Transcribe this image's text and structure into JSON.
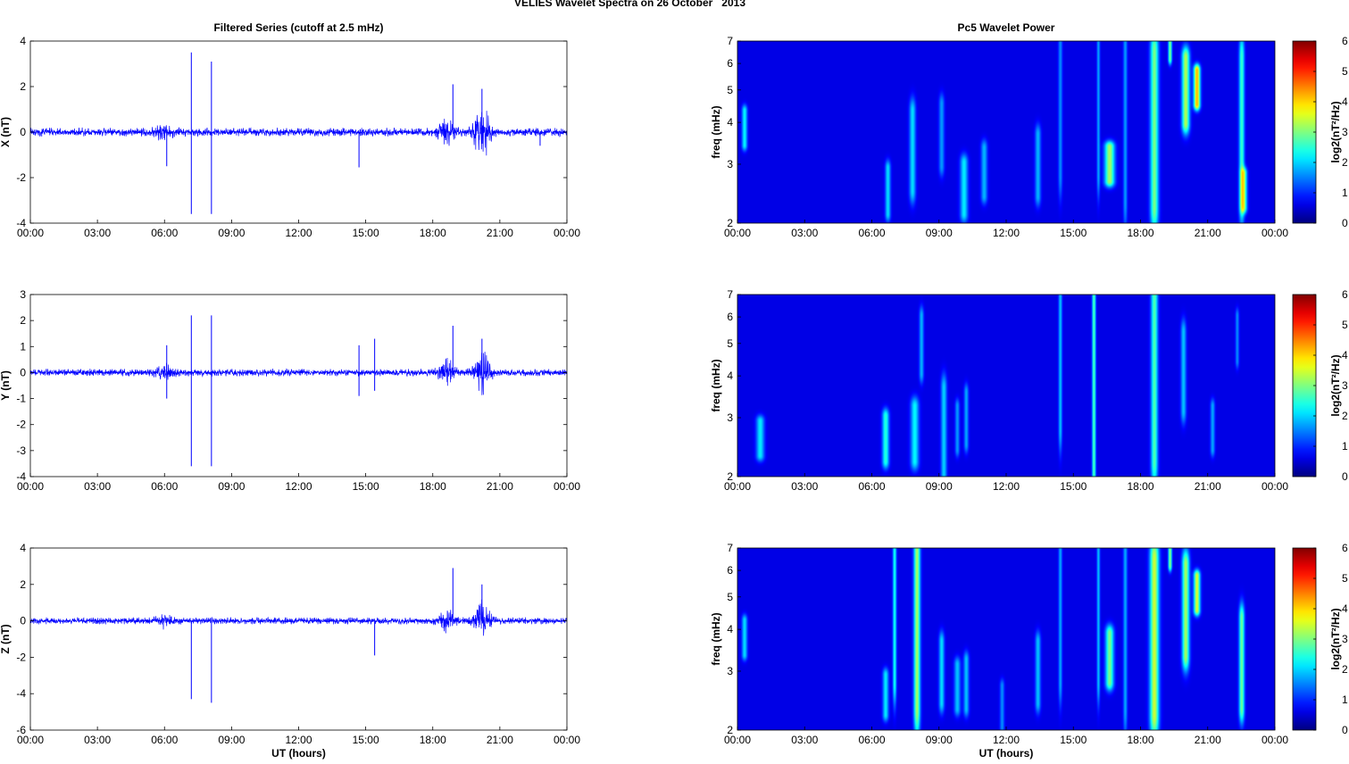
{
  "figure": {
    "title": "VELIES Wavelet Spectra on 26 October   2013",
    "left_title": "Filtered Series (cutoff at 2.5 mHz)",
    "right_title": "Pc5 Wavelet Power",
    "xlabel": "UT (hours)"
  },
  "chart_data": [
    {
      "type": "line",
      "title": "Filtered Series (cutoff at 2.5 mHz)",
      "ylabel": "X (nT)",
      "xlabel": "",
      "xlim": [
        0,
        24
      ],
      "ylim": [
        -4,
        4
      ],
      "yticks": [
        -4,
        -2,
        0,
        2,
        4
      ],
      "xticks": [
        "00:00",
        "03:00",
        "06:00",
        "09:00",
        "12:00",
        "15:00",
        "18:00",
        "21:00",
        "00:00"
      ],
      "color": "#0000ff",
      "noise_amplitude": 0.2,
      "bursts": [
        [
          6,
          0.3
        ],
        [
          18.6,
          0.5
        ],
        [
          20.2,
          1.2
        ]
      ],
      "spikes": [
        [
          6.1,
          0,
          -1.5
        ],
        [
          7.2,
          3.5,
          -3.6
        ],
        [
          8.1,
          3.1,
          -3.6
        ],
        [
          14.7,
          0,
          -1.55
        ],
        [
          18.9,
          2.1,
          0
        ],
        [
          20.2,
          1.9,
          0
        ],
        [
          22.8,
          0,
          -0.6
        ]
      ],
      "grid": false
    },
    {
      "type": "line",
      "ylabel": "Y (nT)",
      "xlabel": "",
      "xlim": [
        0,
        24
      ],
      "ylim": [
        -4,
        3
      ],
      "yticks": [
        -4,
        -3,
        -2,
        -1,
        0,
        1,
        2,
        3
      ],
      "xticks": [
        "00:00",
        "03:00",
        "06:00",
        "09:00",
        "12:00",
        "15:00",
        "18:00",
        "21:00",
        "00:00"
      ],
      "color": "#0000ff",
      "noise_amplitude": 0.15,
      "bursts": [
        [
          6,
          0.25
        ],
        [
          18.6,
          0.5
        ],
        [
          20.2,
          0.8
        ]
      ],
      "spikes": [
        [
          6.1,
          1.05,
          -1.0
        ],
        [
          7.2,
          2.2,
          -3.6
        ],
        [
          8.1,
          2.2,
          -3.6
        ],
        [
          14.7,
          1.05,
          -0.9
        ],
        [
          15.4,
          1.3,
          -0.7
        ],
        [
          18.9,
          1.8,
          0
        ],
        [
          20.2,
          1.3,
          0
        ]
      ],
      "grid": false
    },
    {
      "type": "line",
      "ylabel": "Z (nT)",
      "xlabel": "UT (hours)",
      "xlim": [
        0,
        24
      ],
      "ylim": [
        -6,
        4
      ],
      "yticks": [
        -6,
        -4,
        -2,
        0,
        2,
        4
      ],
      "xticks": [
        "00:00",
        "03:00",
        "06:00",
        "09:00",
        "12:00",
        "15:00",
        "18:00",
        "21:00",
        "00:00"
      ],
      "color": "#0000ff",
      "noise_amplitude": 0.2,
      "bursts": [
        [
          6,
          0.3
        ],
        [
          18.6,
          0.6
        ],
        [
          20.2,
          1.0
        ]
      ],
      "spikes": [
        [
          7.2,
          0,
          -4.3
        ],
        [
          8.1,
          0,
          -4.5
        ],
        [
          15.4,
          0,
          -1.9
        ],
        [
          18.9,
          2.9,
          0
        ],
        [
          20.2,
          2.0,
          0
        ]
      ],
      "grid": false
    },
    {
      "type": "heatmap",
      "title": "Pc5 Wavelet Power",
      "ylabel": "freq (mHz)",
      "xlabel": "",
      "xlim": [
        0,
        24
      ],
      "ylim": [
        2,
        7
      ],
      "yscale": "log",
      "yticks": [
        2,
        3,
        4,
        5,
        6,
        7
      ],
      "xticks": [
        "00:00",
        "03:00",
        "06:00",
        "09:00",
        "12:00",
        "15:00",
        "18:00",
        "21:00",
        "00:00"
      ],
      "colorbar": {
        "label": "log2(nT²/Hz)",
        "range": [
          0,
          6
        ],
        "ticks": [
          0,
          1,
          2,
          3,
          4,
          5,
          6
        ]
      },
      "features": [
        [
          0.3,
          5.5,
          2.7,
          0.12,
          2.0
        ],
        [
          6.7,
          2.3,
          2.7,
          0.12,
          1.8
        ],
        [
          7.8,
          2.7,
          4.0,
          0.14,
          1.8
        ],
        [
          9.1,
          3.2,
          4.2,
          0.12,
          1.3
        ],
        [
          10.1,
          2.3,
          2.8,
          0.17,
          1.9
        ],
        [
          11.0,
          2.6,
          3.1,
          0.14,
          1.5
        ],
        [
          13.4,
          2.6,
          3.4,
          0.13,
          1.5
        ],
        [
          14.4,
          3.0,
          7.0,
          0.09,
          1.2
        ],
        [
          16.1,
          3.0,
          7.0,
          0.07,
          1.4
        ],
        [
          16.6,
          3.0,
          3.0,
          0.22,
          3.2
        ],
        [
          17.3,
          2.5,
          7.0,
          0.09,
          1.3
        ],
        [
          18.6,
          2.4,
          6.0,
          0.18,
          2.9
        ],
        [
          19.3,
          7.0,
          7.0,
          0.08,
          2.9
        ],
        [
          20.0,
          4.3,
          5.8,
          0.17,
          3.3
        ],
        [
          20.5,
          5.0,
          5.2,
          0.14,
          4.4
        ],
        [
          22.5,
          2.5,
          5.8,
          0.12,
          2.4
        ],
        [
          22.6,
          2.5,
          2.5,
          0.14,
          2.6
        ]
      ]
    },
    {
      "type": "heatmap",
      "ylabel": "freq (mHz)",
      "xlabel": "",
      "xlim": [
        0,
        24
      ],
      "ylim": [
        2,
        7
      ],
      "yscale": "log",
      "yticks": [
        2,
        3,
        4,
        5,
        6,
        7
      ],
      "xticks": [
        "00:00",
        "03:00",
        "06:00",
        "09:00",
        "12:00",
        "15:00",
        "18:00",
        "21:00",
        "00:00"
      ],
      "colorbar": {
        "label": "log2(nT²/Hz)",
        "range": [
          0,
          6
        ],
        "ticks": [
          0,
          1,
          2,
          3,
          4,
          5,
          6
        ]
      },
      "features": [
        [
          1.0,
          2.5,
          2.7,
          0.18,
          1.9
        ],
        [
          6.6,
          2.4,
          2.8,
          0.15,
          2.3
        ],
        [
          7.9,
          2.4,
          3.0,
          0.18,
          2.0
        ],
        [
          8.2,
          4.4,
          5.6,
          0.1,
          1.5
        ],
        [
          9.2,
          2.2,
          3.4,
          0.13,
          1.7
        ],
        [
          9.8,
          2.6,
          3.0,
          0.1,
          1.3
        ],
        [
          10.2,
          2.7,
          3.3,
          0.1,
          1.4
        ],
        [
          14.4,
          3.0,
          7.0,
          0.08,
          1.6
        ],
        [
          15.9,
          2.2,
          7.0,
          0.08,
          2.6
        ],
        [
          18.6,
          2.4,
          6.5,
          0.15,
          2.6
        ],
        [
          19.9,
          3.4,
          5.0,
          0.12,
          1.6
        ],
        [
          21.2,
          2.6,
          3.0,
          0.1,
          1.4
        ],
        [
          22.3,
          4.8,
          5.6,
          0.08,
          1.2
        ]
      ]
    },
    {
      "type": "heatmap",
      "ylabel": "freq (mHz)",
      "xlabel": "UT (hours)",
      "xlim": [
        0,
        24
      ],
      "ylim": [
        2,
        7
      ],
      "yscale": "log",
      "yticks": [
        2,
        3,
        4,
        5,
        6,
        7
      ],
      "xticks": [
        "00:00",
        "03:00",
        "06:00",
        "09:00",
        "12:00",
        "15:00",
        "18:00",
        "21:00",
        "00:00"
      ],
      "colorbar": {
        "label": "log2(nT²/Hz)",
        "range": [
          0,
          6
        ],
        "ticks": [
          0,
          1,
          2,
          3,
          4,
          5,
          6
        ]
      },
      "features": [
        [
          0.3,
          5.5,
          2.6,
          0.12,
          1.8
        ],
        [
          6.6,
          2.4,
          2.7,
          0.13,
          1.9
        ],
        [
          7.0,
          3.0,
          7.0,
          0.08,
          2.2
        ],
        [
          8.0,
          2.5,
          7.0,
          0.14,
          3.2
        ],
        [
          9.1,
          2.6,
          3.4,
          0.12,
          1.8
        ],
        [
          9.8,
          2.5,
          2.9,
          0.14,
          1.6
        ],
        [
          10.2,
          2.5,
          3.0,
          0.12,
          1.6
        ],
        [
          11.8,
          2.2,
          2.5,
          0.1,
          1.2
        ],
        [
          13.4,
          2.6,
          3.4,
          0.12,
          1.6
        ],
        [
          14.4,
          3.0,
          7.0,
          0.08,
          1.4
        ],
        [
          16.1,
          3.0,
          7.0,
          0.07,
          1.6
        ],
        [
          16.6,
          3.0,
          3.6,
          0.18,
          2.9
        ],
        [
          17.3,
          2.5,
          7.0,
          0.09,
          1.4
        ],
        [
          18.6,
          2.4,
          6.0,
          0.2,
          3.5
        ],
        [
          19.3,
          7.0,
          7.0,
          0.08,
          3.0
        ],
        [
          20.0,
          3.6,
          5.8,
          0.16,
          3.2
        ],
        [
          20.5,
          5.0,
          5.3,
          0.14,
          3.6
        ],
        [
          22.5,
          2.5,
          4.0,
          0.12,
          2.8
        ]
      ]
    }
  ]
}
